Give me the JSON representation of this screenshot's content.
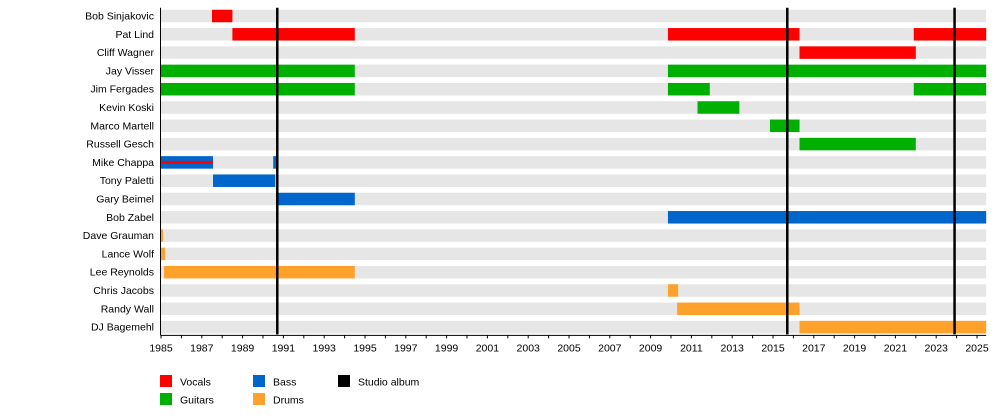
{
  "chart_data": {
    "type": "timeline",
    "xlim": [
      1985,
      2025.45
    ],
    "x_ticks": [
      1985,
      1987,
      1989,
      1991,
      1993,
      1995,
      1997,
      1999,
      2001,
      2003,
      2005,
      2007,
      2009,
      2011,
      2013,
      2015,
      2017,
      2019,
      2021,
      2023,
      2025
    ],
    "grid": false,
    "colors": {
      "Vocals": "#ff0000",
      "Guitars": "#00b000",
      "Bass": "#0066cc",
      "Drums": "#ffa12b",
      "Studio album": "#000000",
      "background_bar": "#e6e6e6"
    },
    "members": [
      {
        "name": "Bob Sinjakovic",
        "periods": [
          {
            "role": "Vocals",
            "from": 1987.5,
            "to": 1988.5
          }
        ]
      },
      {
        "name": "Pat Lind",
        "periods": [
          {
            "role": "Vocals",
            "from": 1988.5,
            "to": 1994.5
          },
          {
            "role": "Vocals",
            "from": 2009.85,
            "to": 2016.3
          },
          {
            "role": "Vocals",
            "from": 2021.9,
            "to": 2025.45
          }
        ]
      },
      {
        "name": "Cliff Wagner",
        "periods": [
          {
            "role": "Vocals",
            "from": 2016.3,
            "to": 2022.0
          }
        ]
      },
      {
        "name": "Jay Visser",
        "periods": [
          {
            "role": "Guitars",
            "from": 1985,
            "to": 1994.5
          },
          {
            "role": "Guitars",
            "from": 2009.85,
            "to": 2025.45
          }
        ]
      },
      {
        "name": "Jim Fergades",
        "periods": [
          {
            "role": "Guitars",
            "from": 1985,
            "to": 1994.5
          },
          {
            "role": "Guitars",
            "from": 2009.85,
            "to": 2011.9
          },
          {
            "role": "Guitars",
            "from": 2021.9,
            "to": 2025.45
          }
        ]
      },
      {
        "name": "Kevin Koski",
        "periods": [
          {
            "role": "Guitars",
            "from": 2011.3,
            "to": 2013.35
          }
        ]
      },
      {
        "name": "Marco Martell",
        "periods": [
          {
            "role": "Guitars",
            "from": 2014.85,
            "to": 2016.3
          }
        ]
      },
      {
        "name": "Russell Gesch",
        "periods": [
          {
            "role": "Guitars",
            "from": 2016.3,
            "to": 2022.0
          }
        ]
      },
      {
        "name": "Mike Chappa",
        "periods": [
          {
            "role": "Bass",
            "from": 1985,
            "to": 1987.55,
            "secondary": "Vocals"
          },
          {
            "role": "Bass",
            "from": 1990.5,
            "to": 1990.7
          }
        ]
      },
      {
        "name": "Tony Paletti",
        "periods": [
          {
            "role": "Bass",
            "from": 1987.55,
            "to": 1990.6
          }
        ]
      },
      {
        "name": "Gary Beimel",
        "periods": [
          {
            "role": "Bass",
            "from": 1990.75,
            "to": 1994.5
          }
        ]
      },
      {
        "name": "Bob Zabel",
        "periods": [
          {
            "role": "Bass",
            "from": 2009.85,
            "to": 2025.45
          }
        ]
      },
      {
        "name": "Dave Grauman",
        "periods": [
          {
            "role": "Drums",
            "from": 1985,
            "to": 1985.1
          }
        ]
      },
      {
        "name": "Lance Wolf",
        "periods": [
          {
            "role": "Drums",
            "from": 1985,
            "to": 1985.2
          }
        ]
      },
      {
        "name": "Lee Reynolds",
        "periods": [
          {
            "role": "Drums",
            "from": 1985.15,
            "to": 1994.5
          }
        ]
      },
      {
        "name": "Chris Jacobs",
        "periods": [
          {
            "role": "Drums",
            "from": 2009.85,
            "to": 2010.35
          }
        ]
      },
      {
        "name": "Randy Wall",
        "periods": [
          {
            "role": "Drums",
            "from": 2010.3,
            "to": 2016.3
          }
        ]
      },
      {
        "name": "DJ Bagemehl",
        "periods": [
          {
            "role": "Drums",
            "from": 2016.3,
            "to": 2025.45
          }
        ]
      }
    ],
    "studio_albums": [
      1990.7,
      2015.7,
      2023.9
    ],
    "legend": [
      {
        "label": "Vocals",
        "color": "#ff0000"
      },
      {
        "label": "Guitars",
        "color": "#00b000"
      },
      {
        "label": "Bass",
        "color": "#0066cc"
      },
      {
        "label": "Drums",
        "color": "#ffa12b"
      },
      {
        "label": "Studio album",
        "color": "#000000"
      }
    ],
    "legend_position": "bottom-left"
  }
}
